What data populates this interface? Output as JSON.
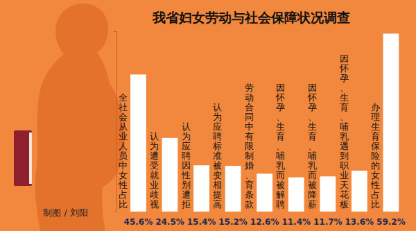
{
  "chart_data": {
    "type": "bar",
    "title": "我省妇女劳动与社会保障状况调查",
    "categories": [
      "全社会从业人员中女性占比",
      "认为遭受就业歧视",
      "认为应聘因性别遭拒",
      "认为应聘标准被变相提高",
      "劳动合同中有限制婚、育条款",
      "因怀孕、生育、哺乳而被解聘",
      "因怀孕、生育、哺乳而被降薪",
      "因怀孕、生育、哺乳遇到职业天花板",
      "办理生育保险的女性占比"
    ],
    "values": [
      45.6,
      24.5,
      15.4,
      15.2,
      12.6,
      11.4,
      11.7,
      13.6,
      59.2
    ],
    "value_labels": [
      "45.6%",
      "24.5%",
      "15.4%",
      "15.2%",
      "12.6%",
      "11.4%",
      "11.7%",
      "13.6%",
      "59.2%"
    ],
    "color": "#ffffff",
    "ylim": [
      0,
      60
    ],
    "grid": false,
    "data_labels": true,
    "tick_labels": "x",
    "annotations": [
      "制图 / 刘阳"
    ]
  }
}
